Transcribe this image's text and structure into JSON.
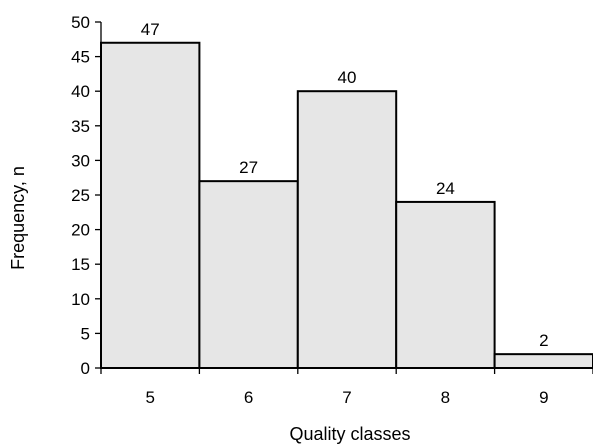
{
  "chart_data": {
    "type": "bar",
    "categories": [
      "5",
      "6",
      "7",
      "8",
      "9"
    ],
    "values": [
      47,
      27,
      40,
      24,
      2
    ],
    "data_labels": [
      "47",
      "27",
      "40",
      "24",
      "2"
    ],
    "title": "",
    "xlabel": "Quality classes",
    "ylabel": "Frequency, n",
    "ylim": [
      0,
      50
    ],
    "yticks": [
      "0",
      "5",
      "10",
      "15",
      "20",
      "25",
      "30",
      "35",
      "40",
      "45",
      "50"
    ],
    "grid": false,
    "legend": "none",
    "bar_color": "#e6e6e6",
    "edge_color": "#000000"
  }
}
